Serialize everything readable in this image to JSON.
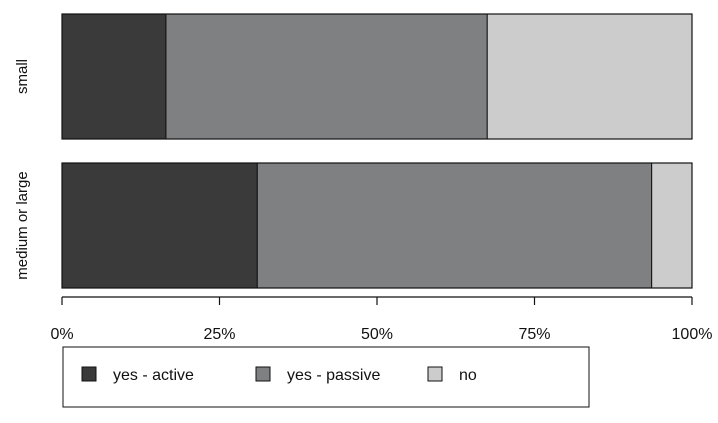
{
  "chart_data": {
    "type": "bar",
    "orientation": "horizontal",
    "stacked": true,
    "normalized": true,
    "categories": [
      "small",
      "medium or large"
    ],
    "series": [
      {
        "name": "yes - active",
        "values": [
          16.5,
          31.0
        ],
        "color": "#3a3a3a"
      },
      {
        "name": "yes - passive",
        "values": [
          51.0,
          62.6
        ],
        "color": "#7f8082"
      },
      {
        "name": "no",
        "values": [
          32.5,
          6.4
        ],
        "color": "#cccccc"
      }
    ],
    "x_ticks": [
      "0%",
      "25%",
      "50%",
      "75%",
      "100%"
    ],
    "x_tick_values": [
      0,
      25,
      50,
      75,
      100
    ],
    "xlim": [
      0,
      100
    ],
    "grid": false,
    "legend_position": "bottom",
    "title": "",
    "xlabel": "",
    "ylabel": ""
  }
}
